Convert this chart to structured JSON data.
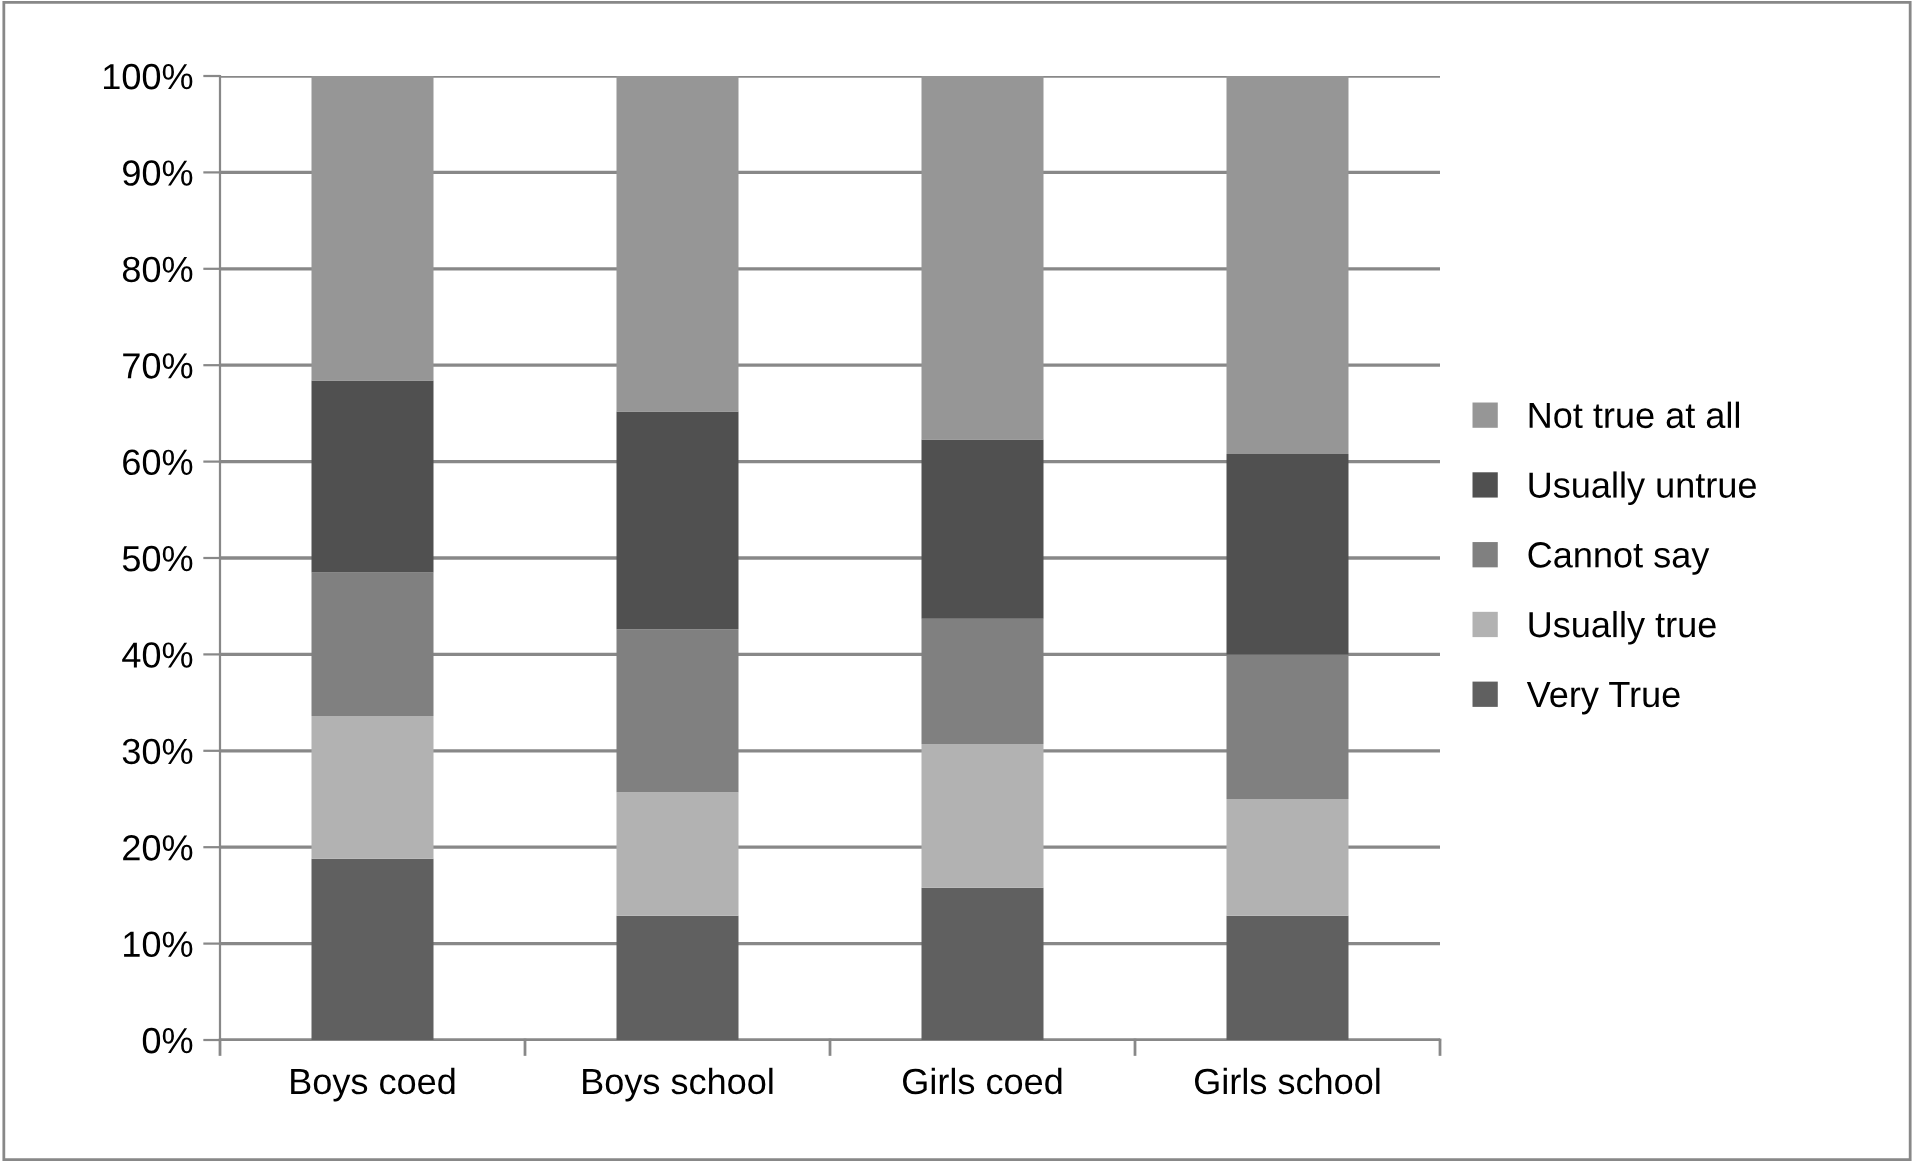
{
  "chart_data": {
    "type": "bar",
    "stacked": true,
    "categories": [
      "Boys coed",
      "Boys school",
      "Girls coed",
      "Girls school"
    ],
    "series": [
      {
        "name": "Very True",
        "color": "#606060",
        "values": [
          18.8,
          12.9,
          15.8,
          12.9
        ]
      },
      {
        "name": "Usually true",
        "color": "#b2b2b2",
        "values": [
          14.8,
          12.8,
          14.9,
          12.1
        ]
      },
      {
        "name": "Cannot say",
        "color": "#808080",
        "values": [
          14.9,
          16.9,
          13.0,
          15.0
        ]
      },
      {
        "name": "Usually untrue",
        "color": "#505050",
        "values": [
          19.9,
          22.6,
          18.6,
          20.8
        ]
      },
      {
        "name": "Not true at all",
        "color": "#969696",
        "values": [
          31.6,
          34.8,
          37.7,
          39.2
        ]
      }
    ],
    "ylim": [
      0,
      100
    ],
    "yticks": [
      {
        "value": 0,
        "label": "0%"
      },
      {
        "value": 10,
        "label": "10%"
      },
      {
        "value": 20,
        "label": "20%"
      },
      {
        "value": 30,
        "label": "30%"
      },
      {
        "value": 40,
        "label": "40%"
      },
      {
        "value": 50,
        "label": "50%"
      },
      {
        "value": 60,
        "label": "60%"
      },
      {
        "value": 70,
        "label": "70%"
      },
      {
        "value": 80,
        "label": "80%"
      },
      {
        "value": 90,
        "label": "90%"
      },
      {
        "value": 100,
        "label": "100%"
      }
    ],
    "grid": "y",
    "legend": "right"
  }
}
